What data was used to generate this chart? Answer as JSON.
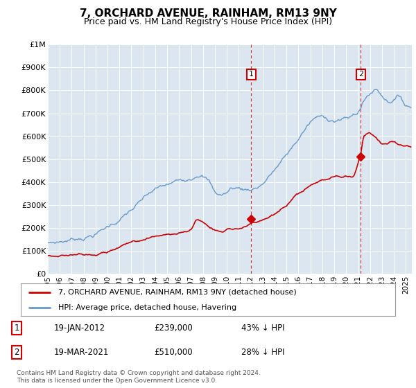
{
  "title": "7, ORCHARD AVENUE, RAINHAM, RM13 9NY",
  "subtitle": "Price paid vs. HM Land Registry's House Price Index (HPI)",
  "legend_line1": "7, ORCHARD AVENUE, RAINHAM, RM13 9NY (detached house)",
  "legend_line2": "HPI: Average price, detached house, Havering",
  "footnote": "Contains HM Land Registry data © Crown copyright and database right 2024.\nThis data is licensed under the Open Government Licence v3.0.",
  "marker1_label": "1",
  "marker1_date": "19-JAN-2012",
  "marker1_price": "£239,000",
  "marker1_pct": "43% ↓ HPI",
  "marker2_label": "2",
  "marker2_date": "19-MAR-2021",
  "marker2_price": "£510,000",
  "marker2_pct": "28% ↓ HPI",
  "red_color": "#cc0000",
  "blue_color": "#6699cc",
  "bg_color": "#dce6f1",
  "grid_color": "#ffffff",
  "ylim": [
    0,
    1000000
  ],
  "xlim_start": 1995.0,
  "xlim_end": 2025.5,
  "marker1_x": 2012.05,
  "marker1_y": 239000,
  "marker2_x": 2021.22,
  "marker2_y": 510000
}
